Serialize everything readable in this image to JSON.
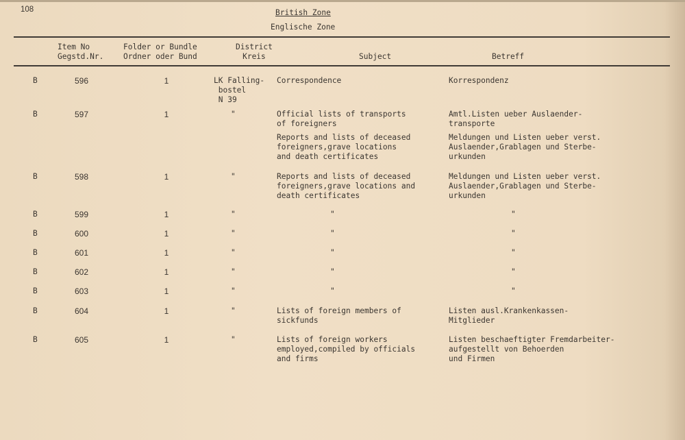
{
  "page_number": "108",
  "title": "British Zone",
  "subtitle": "Englische Zone",
  "columns": {
    "item_no": [
      "Item No",
      "Gegstd.Nr."
    ],
    "folder": [
      "Folder or Bundle",
      "Ordner oder Bund"
    ],
    "district": [
      "District",
      "Kreis"
    ],
    "subject": "Subject",
    "betreff": "Betreff"
  },
  "rows": [
    {
      "zone": "B",
      "item": "596",
      "folder": "1",
      "district": "LK Falling-\n bostel\n N 39",
      "subject": "Correspondence",
      "betreff": "Korrespondenz"
    },
    {
      "zone": "B",
      "item": "597",
      "folder": "1",
      "district": "\"",
      "subject": "Official lists of transports\nof foreigners",
      "betreff": "Amtl.Listen ueber Auslaender-\ntransporte",
      "subject2": "Reports and lists of deceased\nforeigners,grave locations\nand death certificates",
      "betreff2": "Meldungen und Listen ueber verst.\nAuslaender,Grablagen und Sterbe-\nurkunden"
    },
    {
      "zone": "B",
      "item": "598",
      "folder": "1",
      "district": "\"",
      "subject": "Reports and lists of deceased\nforeigners,grave locations and\ndeath certificates",
      "betreff": "Meldungen und Listen ueber verst.\nAuslaender,Grablagen und Sterbe-\nurkunden"
    },
    {
      "zone": "B",
      "item": "599",
      "folder": "1",
      "district": "\"",
      "subject": "\"",
      "betreff": "\""
    },
    {
      "zone": "B",
      "item": "600",
      "folder": "1",
      "district": "\"",
      "subject": "\"",
      "betreff": "\""
    },
    {
      "zone": "B",
      "item": "601",
      "folder": "1",
      "district": "\"",
      "subject": "\"",
      "betreff": "\""
    },
    {
      "zone": "B",
      "item": "602",
      "folder": "1",
      "district": "\"",
      "subject": "\"",
      "betreff": "\""
    },
    {
      "zone": "B",
      "item": "603",
      "folder": "1",
      "district": "\"",
      "subject": "\"",
      "betreff": "\""
    },
    {
      "zone": "B",
      "item": "604",
      "folder": "1",
      "district": "\"",
      "subject": "Lists of foreign members of\nsickfunds",
      "betreff": "Listen ausl.Krankenkassen-\nMitglieder"
    },
    {
      "zone": "B",
      "item": "605",
      "folder": "1",
      "district": "\"",
      "subject": "Lists of foreign workers\nemployed,compiled by officials\nand firms",
      "betreff": "Listen beschaeftigter Fremdarbeiter-\naufgestellt von Behoerden\nund Firmen"
    }
  ]
}
